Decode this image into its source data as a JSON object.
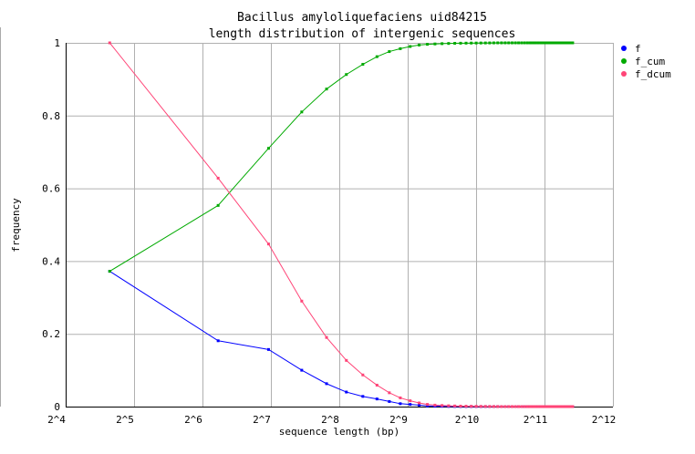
{
  "chart_data": {
    "type": "line",
    "title": [
      "Bacillus amyloliquefaciens uid84215",
      "length distribution of intergenic sequences"
    ],
    "xlabel": "sequence length (bp)",
    "ylabel": "frequency",
    "xscale": "log2",
    "xlim": [
      16,
      4096
    ],
    "ylim": [
      0,
      1
    ],
    "x_ticks": [
      "2^4",
      "2^5",
      "2^6",
      "2^7",
      "2^8",
      "2^9",
      "2^10",
      "2^11",
      "2^12"
    ],
    "y_ticks": [
      "0",
      "0.2",
      "0.4",
      "0.6",
      "0.8",
      "1"
    ],
    "grid": true,
    "legend_position": "right",
    "x": [
      25,
      75,
      125,
      175,
      225,
      275,
      325,
      375,
      425,
      475,
      525,
      575,
      625,
      675,
      725,
      775,
      825,
      875,
      925,
      975,
      1025,
      1075,
      1125,
      1175,
      1225,
      1275,
      1325,
      1375,
      1425,
      1475,
      1525,
      1575,
      1625,
      1675,
      1725,
      1775,
      1825,
      1875,
      1925,
      1975,
      2025,
      2075,
      2125,
      2175,
      2225,
      2275,
      2325,
      2375,
      2425,
      2475,
      2525,
      2575,
      2625,
      2675,
      2725
    ],
    "series": [
      {
        "name": "f",
        "color": "#0000ff",
        "values": [
          0.372,
          0.181,
          0.157,
          0.1,
          0.063,
          0.04,
          0.028,
          0.021,
          0.014,
          0.008,
          0.006,
          0.004,
          0.002,
          0.001,
          0.0008,
          0.0005,
          0.0004,
          0.0003,
          0.0002,
          0.0002,
          0.0001,
          0.0001,
          0.0001,
          0.0001,
          0.0001,
          0.0001,
          0,
          0,
          0,
          0,
          0,
          0,
          0,
          0,
          0,
          0,
          0,
          0,
          0,
          0,
          0,
          0,
          0,
          0,
          0,
          0,
          0,
          0,
          0,
          0,
          0,
          0,
          0,
          0,
          0
        ]
      },
      {
        "name": "f_cum",
        "color": "#00aa00",
        "values": [
          0.372,
          0.553,
          0.71,
          0.81,
          0.873,
          0.913,
          0.941,
          0.962,
          0.976,
          0.984,
          0.99,
          0.994,
          0.996,
          0.997,
          0.9978,
          0.9983,
          0.9987,
          0.999,
          0.9992,
          0.9994,
          0.9995,
          0.9996,
          0.9997,
          0.9998,
          0.9999,
          1,
          1,
          1,
          1,
          1,
          1,
          1,
          1,
          1,
          1,
          1,
          1,
          1,
          1,
          1,
          1,
          1,
          1,
          1,
          1,
          1,
          1,
          1,
          1,
          1,
          1,
          1,
          1,
          1,
          1
        ]
      },
      {
        "name": "f_dcum",
        "color": "#ff4477",
        "values": [
          1,
          0.628,
          0.447,
          0.29,
          0.19,
          0.127,
          0.087,
          0.059,
          0.038,
          0.024,
          0.016,
          0.01,
          0.006,
          0.004,
          0.003,
          0.0022,
          0.0017,
          0.0013,
          0.001,
          0.0008,
          0.0006,
          0.0005,
          0.0004,
          0.0003,
          0.0002,
          0.0001,
          0,
          0,
          0,
          0,
          0,
          0,
          0,
          0,
          0,
          0,
          0,
          0,
          0,
          0,
          0,
          0,
          0,
          0,
          0,
          0,
          0,
          0,
          0,
          0,
          0,
          0,
          0,
          0,
          0
        ]
      }
    ]
  }
}
